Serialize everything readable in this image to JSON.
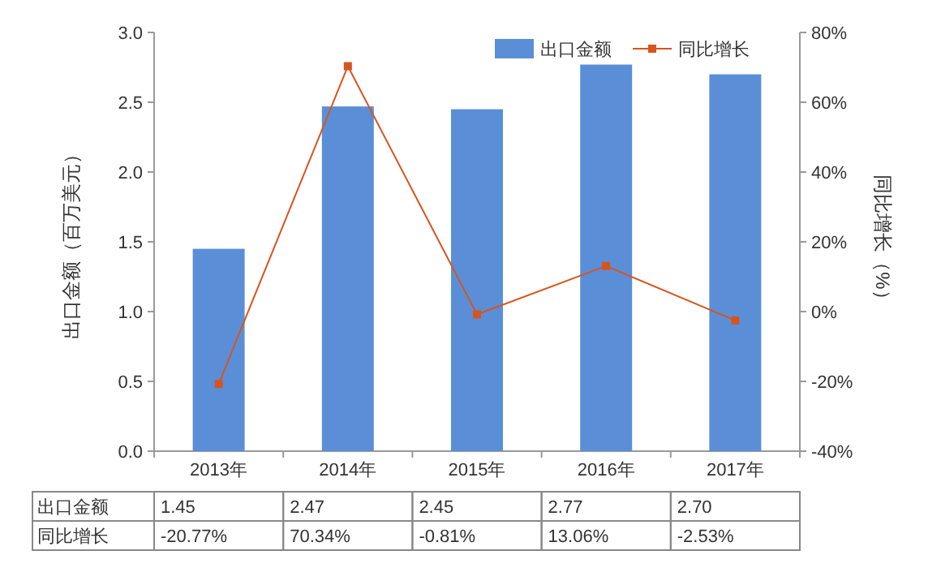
{
  "chart_data": {
    "type": "bar",
    "ylabel": "出口金额（百万美元）",
    "y2label": "同比增长（%）",
    "categories": [
      "2013年",
      "2014年",
      "2015年",
      "2016年",
      "2017年"
    ],
    "ylim": [
      0,
      3
    ],
    "yticks": [
      {
        "value": 0,
        "label": "0.0"
      },
      {
        "value": 0.5,
        "label": "0.5"
      },
      {
        "value": 1,
        "label": "1.0"
      },
      {
        "value": 1.5,
        "label": "1.5"
      },
      {
        "value": 2,
        "label": "2.0"
      },
      {
        "value": 2.5,
        "label": "2.5"
      },
      {
        "value": 3,
        "label": "3.0"
      }
    ],
    "y2lim": [
      -40,
      80
    ],
    "y2ticks": [
      {
        "value": -40,
        "label": "-40%"
      },
      {
        "value": -20,
        "label": "-20%"
      },
      {
        "value": 0,
        "label": "0%"
      },
      {
        "value": 20,
        "label": "20%"
      },
      {
        "value": 40,
        "label": "40%"
      },
      {
        "value": 60,
        "label": "60%"
      },
      {
        "value": 80,
        "label": "80%"
      }
    ],
    "legend": "top right",
    "grid": false,
    "series": [
      {
        "name": "出口金额",
        "color": "#5a8fd8",
        "values": [
          1.45,
          2.47,
          2.45,
          2.77,
          2.7
        ],
        "value_labels": [
          "1.45",
          "2.47",
          "2.45",
          "2.77",
          "2.70"
        ]
      },
      {
        "name": "同比增长",
        "type": "line",
        "axis": "y2",
        "color": "#d8541e",
        "marker": "square",
        "line_style": "solid",
        "values": [
          -20.77,
          70.34,
          -0.81,
          13.06,
          -2.53
        ],
        "value_labels": [
          "-20.77%",
          "70.34%",
          "-0.81%",
          "13.06%",
          "-2.53%"
        ]
      }
    ]
  }
}
